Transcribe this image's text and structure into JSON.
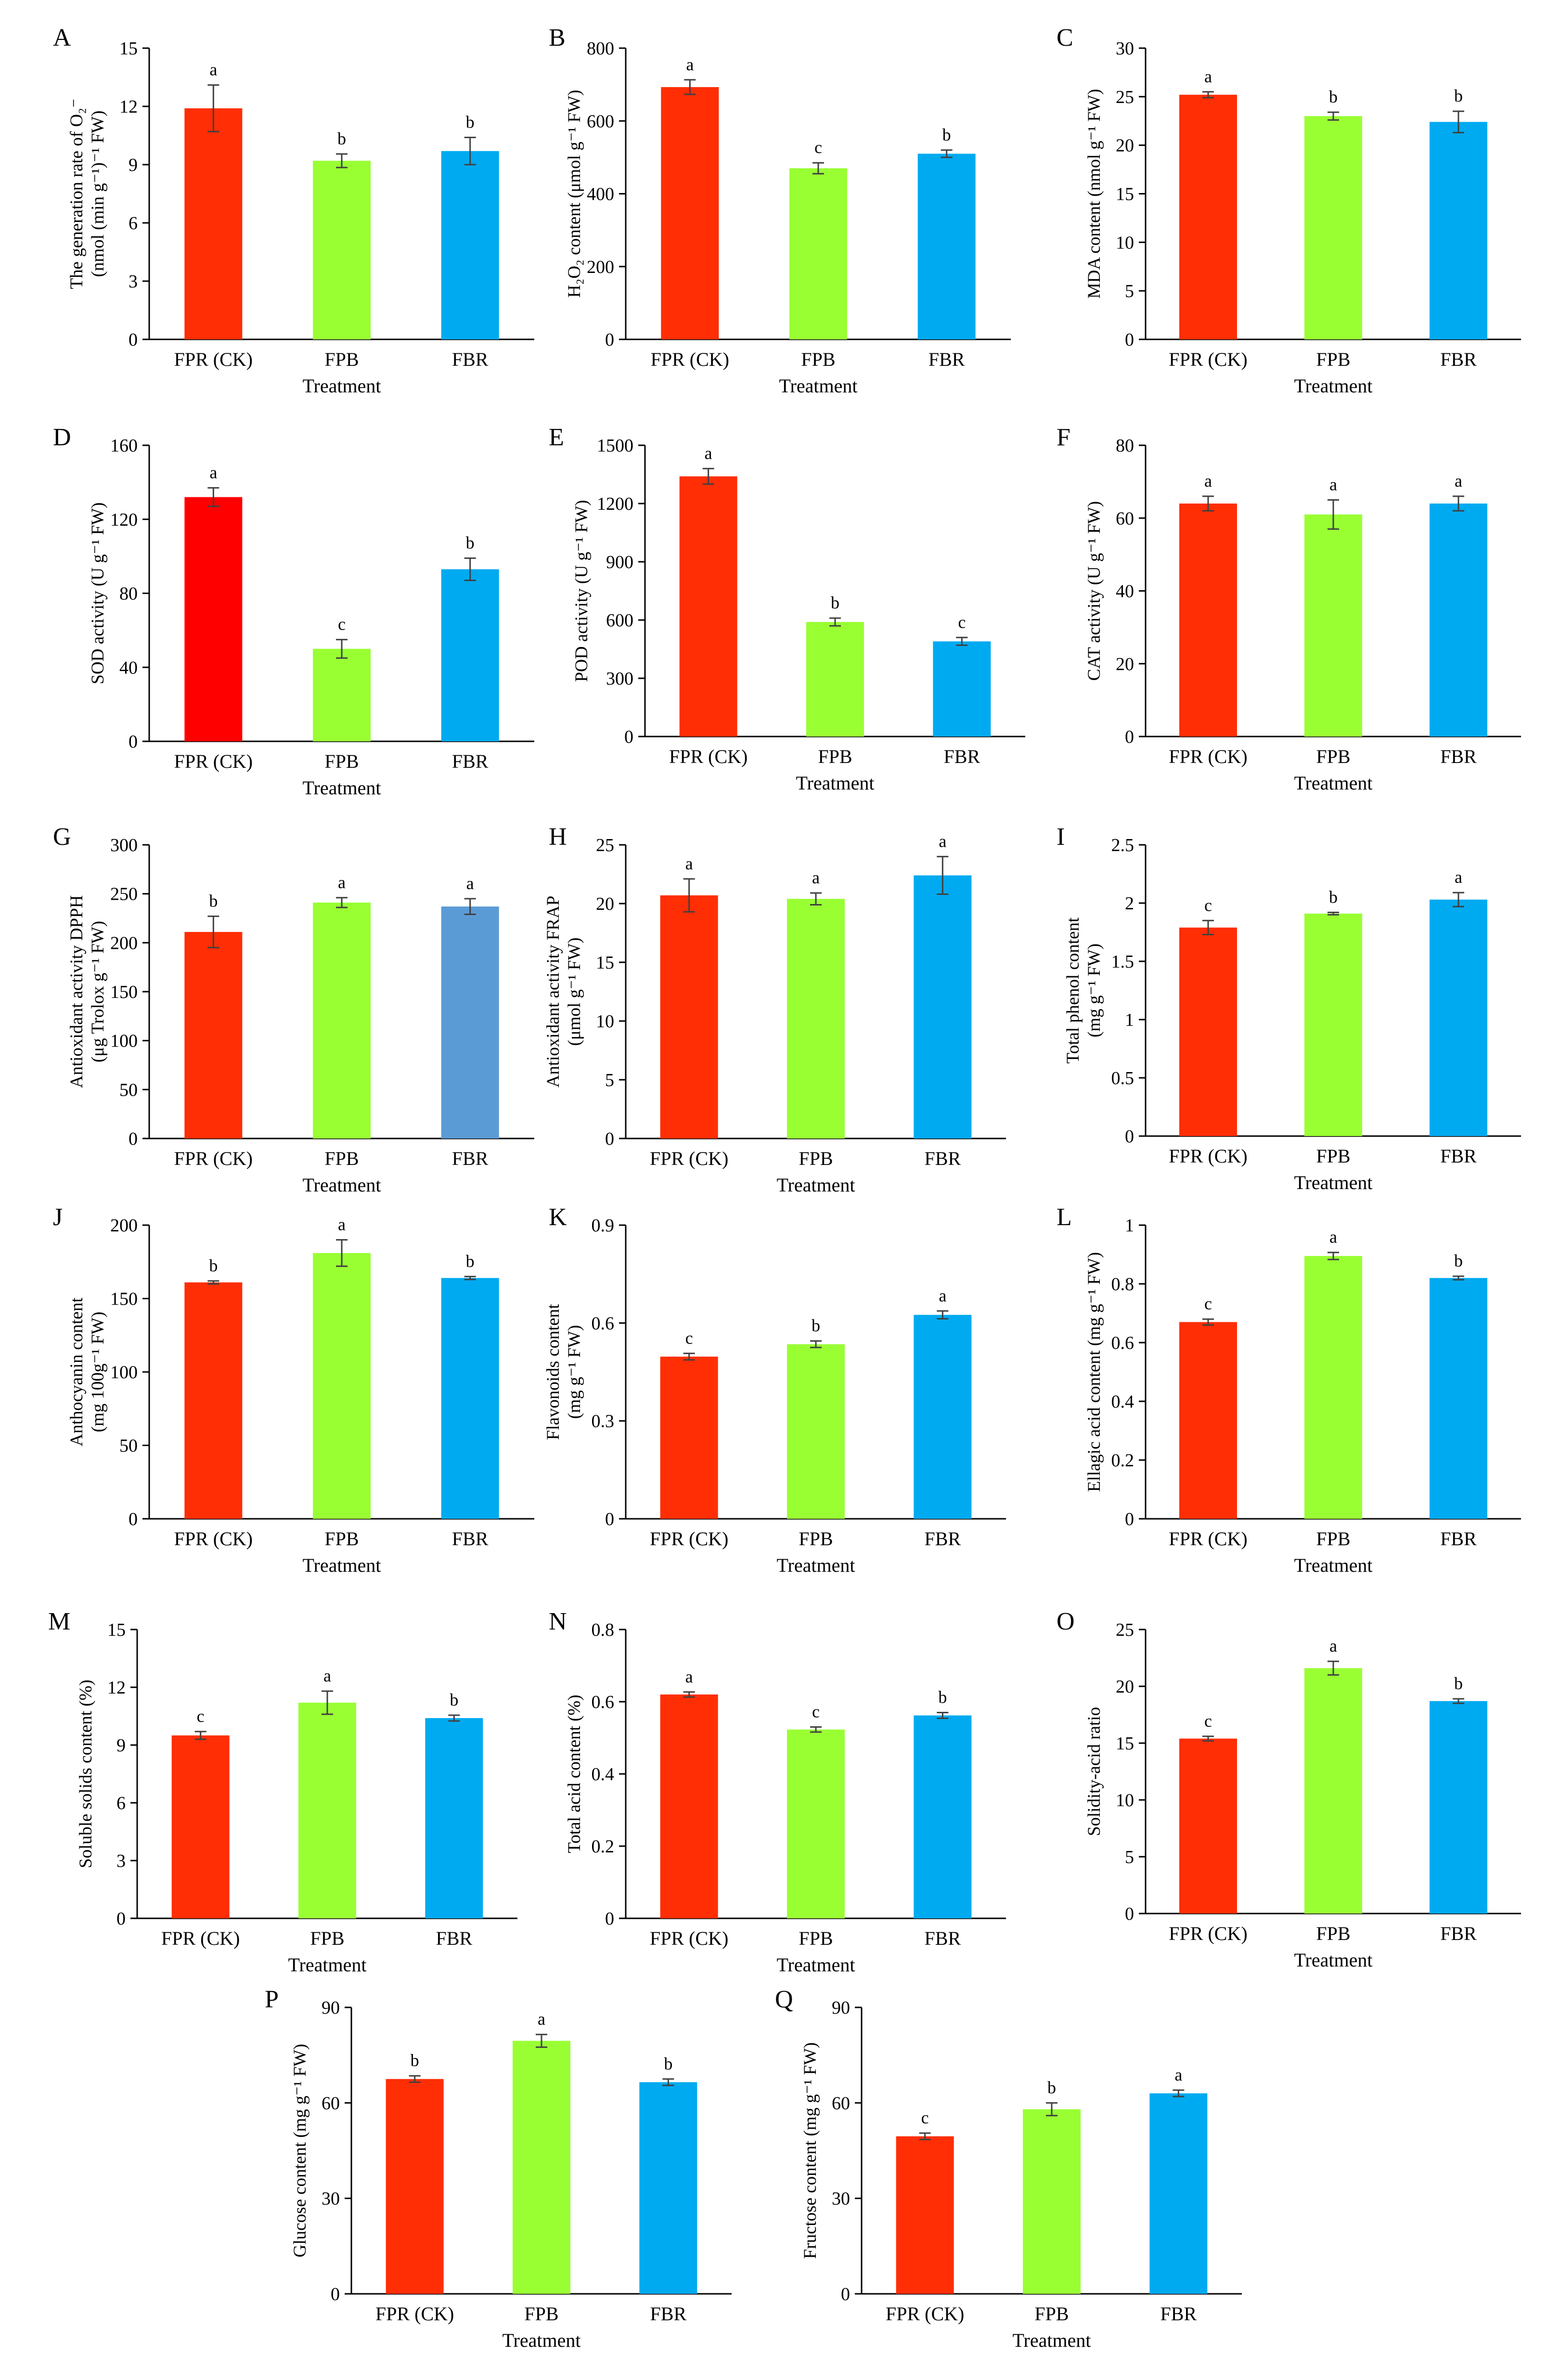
{
  "figure": "Physiological and quality indices of fruit under three treatments",
  "colors": {
    "FPR (CK)": "#ff2e05",
    "FPB": "#99ff33",
    "FBR": "#00aaf0"
  },
  "chart_data": [
    {
      "panel": "A",
      "type": "bar",
      "categories": [
        "FPR (CK)",
        "FPB",
        "FBR"
      ],
      "values": [
        11.9,
        9.2,
        9.7
      ],
      "errors": [
        1.2,
        0.35,
        0.7
      ],
      "letters": [
        "a",
        "b",
        "b"
      ],
      "ylim": [
        0,
        15
      ],
      "yticks": [
        "0",
        "3",
        "6",
        "9",
        "12",
        "15"
      ],
      "ylabel_lines": [
        "The generation rate of O₂⁻",
        "(nmol (min g⁻¹)⁻¹ FW)"
      ],
      "xlabel": "Treatment",
      "bar_colors": [
        "#ff2e05",
        "#99ff33",
        "#00aaf0"
      ]
    },
    {
      "panel": "B",
      "type": "bar",
      "categories": [
        "FPR (CK)",
        "FPB",
        "FBR"
      ],
      "values": [
        693,
        470,
        510
      ],
      "errors": [
        20,
        15,
        10
      ],
      "letters": [
        "a",
        "c",
        "b"
      ],
      "ylim": [
        0,
        800
      ],
      "yticks": [
        "0",
        "200",
        "400",
        "600",
        "800"
      ],
      "ylabel_lines": [
        "H₂O₂ content (μmol g⁻¹ FW)"
      ],
      "xlabel": "Treatment",
      "bar_colors": [
        "#ff2e05",
        "#99ff33",
        "#00aaf0"
      ]
    },
    {
      "panel": "C",
      "type": "bar",
      "categories": [
        "FPR (CK)",
        "FPB",
        "FBR"
      ],
      "values": [
        25.2,
        23.0,
        22.4
      ],
      "errors": [
        0.3,
        0.4,
        1.1
      ],
      "letters": [
        "a",
        "b",
        "b"
      ],
      "ylim": [
        0,
        30
      ],
      "yticks": [
        "0",
        "5",
        "10",
        "15",
        "20",
        "25",
        "30"
      ],
      "ylabel_lines": [
        "MDA content (nmol g⁻¹ FW)"
      ],
      "xlabel": "Treatment",
      "bar_colors": [
        "#ff2e05",
        "#99ff33",
        "#00aaf0"
      ]
    },
    {
      "panel": "D",
      "type": "bar",
      "categories": [
        "FPR (CK)",
        "FPB",
        "FBR"
      ],
      "values": [
        132,
        50,
        93
      ],
      "errors": [
        5,
        5,
        6
      ],
      "letters": [
        "a",
        "c",
        "b"
      ],
      "ylim": [
        0,
        160
      ],
      "yticks": [
        "0",
        "40",
        "80",
        "120",
        "160"
      ],
      "ylabel_lines": [
        "SOD activity (U g⁻¹ FW)"
      ],
      "xlabel": "Treatment",
      "bar_colors": [
        "#ff0000",
        "#99ff33",
        "#00aaf0"
      ]
    },
    {
      "panel": "E",
      "type": "bar",
      "categories": [
        "FPR (CK)",
        "FPB",
        "FBR"
      ],
      "values": [
        1340,
        590,
        490
      ],
      "errors": [
        40,
        20,
        20
      ],
      "letters": [
        "a",
        "b",
        "c"
      ],
      "ylim": [
        0,
        1500
      ],
      "yticks": [
        "0",
        "300",
        "600",
        "900",
        "1200",
        "1500"
      ],
      "ylabel_lines": [
        "POD activity (U g⁻¹ FW)"
      ],
      "xlabel": "Treatment",
      "bar_colors": [
        "#ff2e05",
        "#99ff33",
        "#00aaf0"
      ]
    },
    {
      "panel": "F",
      "type": "bar",
      "categories": [
        "FPR (CK)",
        "FPB",
        "FBR"
      ],
      "values": [
        64,
        61,
        64
      ],
      "errors": [
        2,
        4,
        2
      ],
      "letters": [
        "a",
        "a",
        "a"
      ],
      "ylim": [
        0,
        80
      ],
      "yticks": [
        "0",
        "20",
        "40",
        "60",
        "80"
      ],
      "ylabel_lines": [
        "CAT activity (U g⁻¹ FW)"
      ],
      "xlabel": "Treatment",
      "bar_colors": [
        "#ff2e05",
        "#99ff33",
        "#00aaf0"
      ]
    },
    {
      "panel": "G",
      "type": "bar",
      "categories": [
        "FPR (CK)",
        "FPB",
        "FBR"
      ],
      "values": [
        211,
        241,
        237
      ],
      "errors": [
        16,
        5,
        8
      ],
      "letters": [
        "b",
        "a",
        "a"
      ],
      "ylim": [
        0,
        300
      ],
      "yticks": [
        "0",
        "50",
        "100",
        "150",
        "200",
        "250",
        "300"
      ],
      "ylabel_lines": [
        "Antioxidant activity DPPH",
        "(μg Trolox g⁻¹ FW)"
      ],
      "xlabel": "Treatment",
      "bar_colors": [
        "#ff2e05",
        "#99ff33",
        "#5b9bd5"
      ]
    },
    {
      "panel": "H",
      "type": "bar",
      "categories": [
        "FPR (CK)",
        "FPB",
        "FBR"
      ],
      "values": [
        20.7,
        20.4,
        22.4
      ],
      "errors": [
        1.4,
        0.5,
        1.6
      ],
      "letters": [
        "a",
        "a",
        "a"
      ],
      "ylim": [
        0,
        25
      ],
      "yticks": [
        "0",
        "5",
        "10",
        "15",
        "20",
        "25"
      ],
      "ylabel_lines": [
        "Antioxidant activity FRAP",
        "(μmol g⁻¹ FW)"
      ],
      "xlabel": "Treatment",
      "bar_colors": [
        "#ff2e05",
        "#99ff33",
        "#00aaf0"
      ]
    },
    {
      "panel": "I",
      "type": "bar",
      "categories": [
        "FPR (CK)",
        "FPB",
        "FBR"
      ],
      "values": [
        1.79,
        1.91,
        2.03
      ],
      "errors": [
        0.06,
        0.01,
        0.06
      ],
      "letters": [
        "c",
        "b",
        "a"
      ],
      "ylim": [
        0,
        2.5
      ],
      "yticks": [
        "0",
        "0.5",
        "1",
        "1.5",
        "2",
        "2.5"
      ],
      "ylabel_lines": [
        "Total phenol content",
        "(mg g⁻¹ FW)"
      ],
      "xlabel": "Treatment",
      "bar_colors": [
        "#ff2e05",
        "#99ff33",
        "#00aaf0"
      ]
    },
    {
      "panel": "J",
      "type": "bar",
      "categories": [
        "FPR (CK)",
        "FPB",
        "FBR"
      ],
      "values": [
        161,
        181,
        164
      ],
      "errors": [
        1,
        9,
        1
      ],
      "letters": [
        "b",
        "a",
        "b"
      ],
      "ylim": [
        0,
        200
      ],
      "yticks": [
        "0",
        "50",
        "100",
        "150",
        "200"
      ],
      "ylabel_lines": [
        "Anthocyanin content",
        "(mg 100g⁻¹ FW)"
      ],
      "xlabel": "Treatment",
      "bar_colors": [
        "#ff2e05",
        "#99ff33",
        "#00aaf0"
      ]
    },
    {
      "panel": "K",
      "type": "bar",
      "categories": [
        "FPR (CK)",
        "FPB",
        "FBR"
      ],
      "values": [
        0.497,
        0.535,
        0.625
      ],
      "errors": [
        0.01,
        0.01,
        0.012
      ],
      "letters": [
        "c",
        "b",
        "a"
      ],
      "ylim": [
        0,
        0.9
      ],
      "yticks": [
        "0",
        "0.3",
        "0.6",
        "0.9"
      ],
      "ylabel_lines": [
        "Flavonoids content",
        "(mg g⁻¹ FW)"
      ],
      "xlabel": "Treatment",
      "bar_colors": [
        "#ff2e05",
        "#99ff33",
        "#00aaf0"
      ]
    },
    {
      "panel": "L",
      "type": "bar",
      "categories": [
        "FPR (CK)",
        "FPB",
        "FBR"
      ],
      "values": [
        0.67,
        0.895,
        0.82
      ],
      "errors": [
        0.01,
        0.012,
        0.006
      ],
      "letters": [
        "c",
        "a",
        "b"
      ],
      "ylim": [
        0,
        1
      ],
      "yticks": [
        "0",
        "0.2",
        "0.4",
        "0.6",
        "0.8",
        "1"
      ],
      "ylabel_lines": [
        "Ellagic acid content (mg g⁻¹ FW)"
      ],
      "xlabel": "Treatment",
      "bar_colors": [
        "#ff2e05",
        "#99ff33",
        "#00aaf0"
      ]
    },
    {
      "panel": "M",
      "type": "bar",
      "categories": [
        "FPR (CK)",
        "FPB",
        "FBR"
      ],
      "values": [
        9.5,
        11.2,
        10.4
      ],
      "errors": [
        0.2,
        0.6,
        0.15
      ],
      "letters": [
        "c",
        "a",
        "b"
      ],
      "ylim": [
        0,
        15
      ],
      "yticks": [
        "0",
        "3",
        "6",
        "9",
        "12",
        "15"
      ],
      "ylabel_lines": [
        "Soluble solids content (%)"
      ],
      "xlabel": "Treatment",
      "bar_colors": [
        "#ff2e05",
        "#99ff33",
        "#00aaf0"
      ]
    },
    {
      "panel": "N",
      "type": "bar",
      "categories": [
        "FPR (CK)",
        "FPB",
        "FBR"
      ],
      "values": [
        0.62,
        0.523,
        0.562
      ],
      "errors": [
        0.007,
        0.007,
        0.008
      ],
      "letters": [
        "a",
        "c",
        "b"
      ],
      "ylim": [
        0,
        0.8
      ],
      "yticks": [
        "0",
        "0.2",
        "0.4",
        "0.6",
        "0.8"
      ],
      "ylabel_lines": [
        "Total acid content (%)"
      ],
      "xlabel": "Treatment",
      "bar_colors": [
        "#ff2e05",
        "#99ff33",
        "#00aaf0"
      ]
    },
    {
      "panel": "O",
      "type": "bar",
      "categories": [
        "FPR (CK)",
        "FPB",
        "FBR"
      ],
      "values": [
        15.4,
        21.6,
        18.7
      ],
      "errors": [
        0.2,
        0.6,
        0.2
      ],
      "letters": [
        "c",
        "a",
        "b"
      ],
      "ylim": [
        0,
        25
      ],
      "yticks": [
        "0",
        "5",
        "10",
        "15",
        "20",
        "25"
      ],
      "ylabel_lines": [
        "Solidity-acid ratio"
      ],
      "xlabel": "Treatment",
      "bar_colors": [
        "#ff2e05",
        "#99ff33",
        "#00aaf0"
      ]
    },
    {
      "panel": "P",
      "type": "bar",
      "categories": [
        "FPR (CK)",
        "FPB",
        "FBR"
      ],
      "values": [
        67.5,
        79.5,
        66.5
      ],
      "errors": [
        1,
        2,
        1
      ],
      "letters": [
        "b",
        "a",
        "b"
      ],
      "ylim": [
        0,
        90
      ],
      "yticks": [
        "0",
        "30",
        "60",
        "90"
      ],
      "ylabel_lines": [
        "Glucose content (mg g⁻¹ FW)"
      ],
      "xlabel": "Treatment",
      "bar_colors": [
        "#ff2e05",
        "#99ff33",
        "#00aaf0"
      ]
    },
    {
      "panel": "Q",
      "type": "bar",
      "categories": [
        "FPR (CK)",
        "FPB",
        "FBR"
      ],
      "values": [
        49.5,
        58,
        63
      ],
      "errors": [
        1,
        2,
        1
      ],
      "letters": [
        "c",
        "b",
        "a"
      ],
      "ylim": [
        0,
        90
      ],
      "yticks": [
        "0",
        "30",
        "60",
        "90"
      ],
      "ylabel_lines": [
        "Fructose content (mg g⁻¹ FW)"
      ],
      "xlabel": "Treatment",
      "bar_colors": [
        "#ff2e05",
        "#99ff33",
        "#00aaf0"
      ]
    }
  ]
}
